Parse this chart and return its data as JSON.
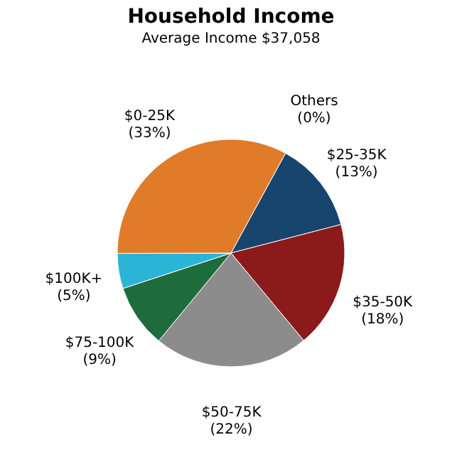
{
  "chart_data": {
    "type": "pie",
    "title": "Household Income",
    "subtitle": "Average Income  $37,058",
    "categories": [
      "$25-35K",
      "$35-50K",
      "$50-75K",
      "$75-100K",
      "$100K+",
      "Others",
      "$0-25K"
    ],
    "values": [
      13,
      18,
      22,
      9,
      5,
      0,
      33
    ],
    "value_labels": [
      "(13%)",
      "(18%)",
      "(22%)",
      "(9%)",
      "(5%)",
      "(0%)",
      "(33%)"
    ],
    "colors": [
      "#17456e",
      "#8b1a1a",
      "#8c8c8c",
      "#1e6b3c",
      "#2ab5d6",
      "#7fd0e6",
      "#e07b2a"
    ],
    "legend": false
  }
}
